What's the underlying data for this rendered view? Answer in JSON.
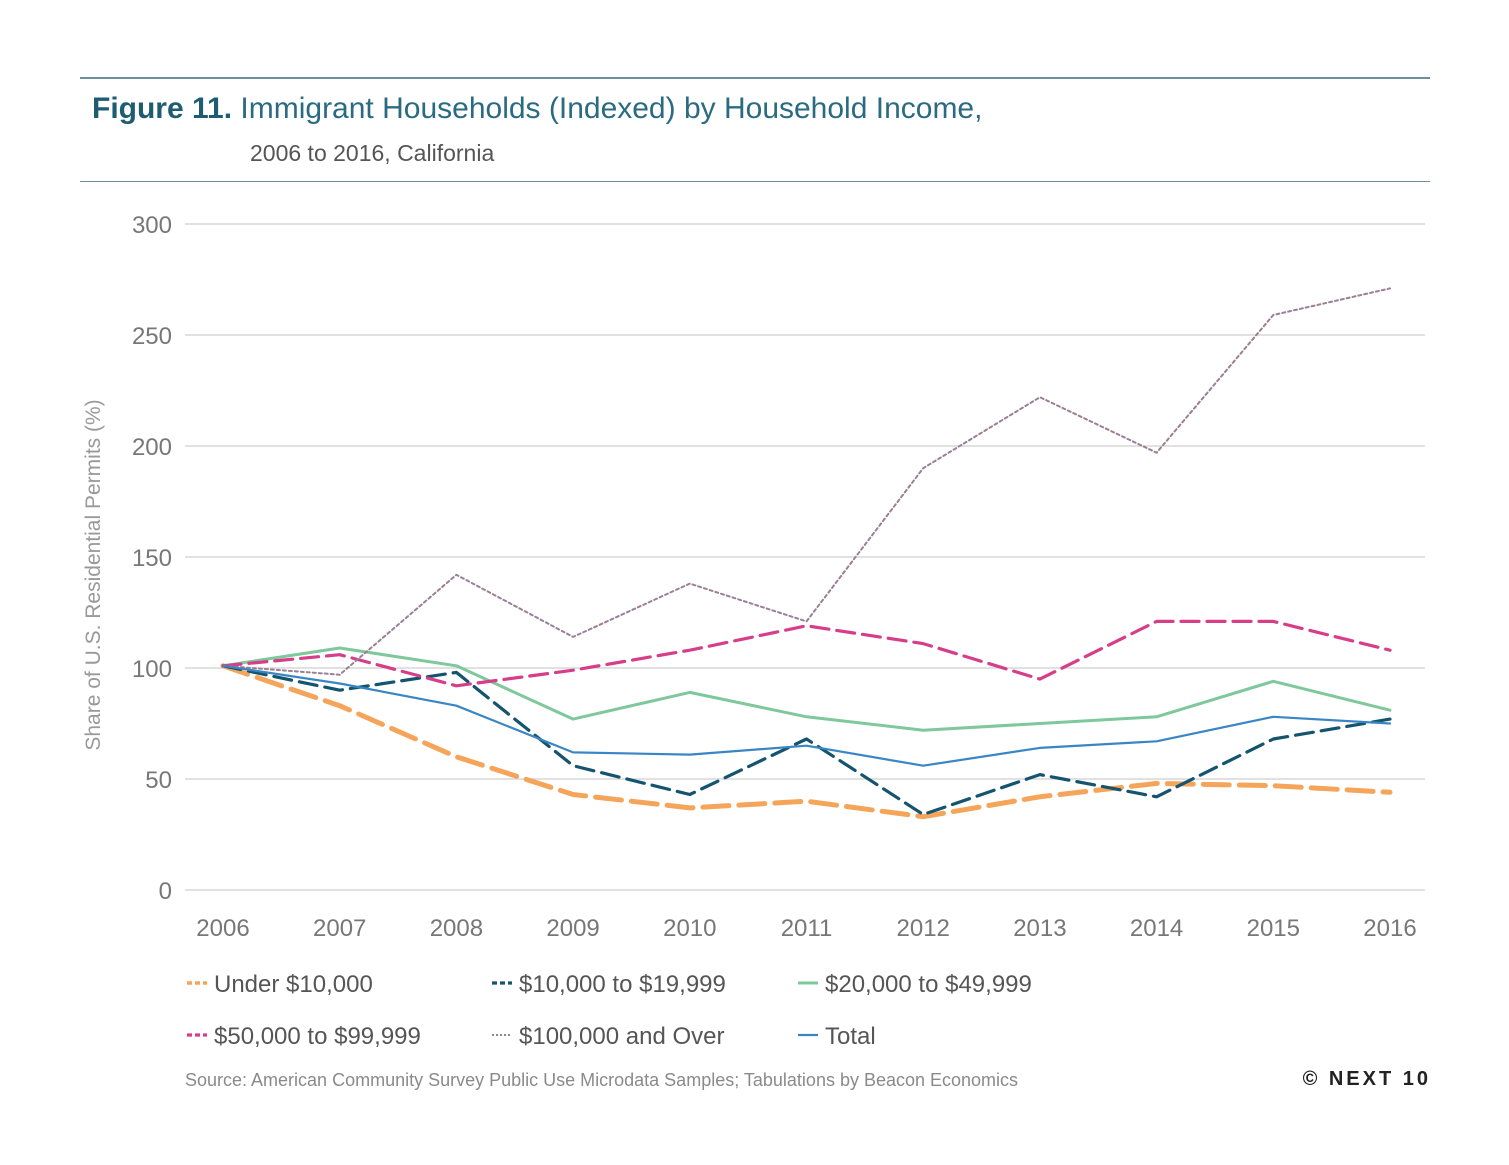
{
  "header": {
    "figure_label": "Figure 11.",
    "title": "Immigrant Households (Indexed) by Household Income,",
    "subtitle": "2006 to 2016, California"
  },
  "footer": {
    "source": "Source: American Community Survey Public Use Microdata Samples; Tabulations by Beacon Economics",
    "copyright": "© NEXT 10"
  },
  "chart_data": {
    "type": "line",
    "title": "Immigrant Households (Indexed) by Household Income, 2006 to 2016, California",
    "xlabel": "",
    "ylabel": "Share of U.S. Residential Permits (%)",
    "ylim": [
      0,
      300
    ],
    "yticks": [
      0,
      50,
      100,
      150,
      200,
      250,
      300
    ],
    "grid": true,
    "legend_position": "bottom",
    "categories": [
      "2006",
      "2007",
      "2008",
      "2009",
      "2010",
      "2011",
      "2012",
      "2013",
      "2014",
      "2015",
      "2016"
    ],
    "series": [
      {
        "name": "Under $10,000",
        "color": "#f4a55a",
        "style": "dashed-thick",
        "values": [
          101,
          83,
          60,
          43,
          37,
          40,
          33,
          42,
          48,
          47,
          44
        ]
      },
      {
        "name": "$10,000 to $19,999",
        "color": "#14546e",
        "style": "dashed",
        "values": [
          101,
          90,
          98,
          56,
          43,
          68,
          34,
          52,
          42,
          68,
          77
        ]
      },
      {
        "name": "$20,000 to $49,999",
        "color": "#7ec89b",
        "style": "solid",
        "values": [
          101,
          109,
          101,
          77,
          89,
          78,
          72,
          75,
          78,
          94,
          81
        ]
      },
      {
        "name": "$50,000 to $99,999",
        "color": "#d63e8a",
        "style": "dashed",
        "values": [
          101,
          106,
          92,
          99,
          108,
          119,
          111,
          95,
          121,
          121,
          108
        ]
      },
      {
        "name": "$100,000 and Over",
        "color": "#9a7f95",
        "style": "dotted",
        "values": [
          101,
          97,
          142,
          114,
          138,
          121,
          190,
          222,
          197,
          259,
          271
        ]
      },
      {
        "name": "Total",
        "color": "#3a86c4",
        "style": "solid-thin",
        "values": [
          101,
          93,
          83,
          62,
          61,
          65,
          56,
          64,
          67,
          78,
          75
        ]
      }
    ]
  }
}
